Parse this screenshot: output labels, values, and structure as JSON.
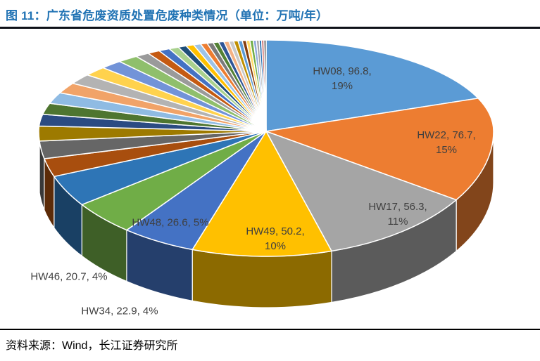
{
  "title": "图 11：广东省危废资质处置危废种类情况（单位：万吨/年）",
  "source": "资料来源：Wind，长江证券研究所",
  "colors": {
    "title_text": "#2173B4",
    "title_rule": "#0E1118",
    "source_rule": "#000000",
    "label_text": "#3F3F3F",
    "background": "#FFFFFF"
  },
  "chart_data": {
    "type": "pie",
    "style": "3d",
    "title": "广东省危废资质处置危废种类情况",
    "unit": "万吨/年",
    "legend_position": "none",
    "label_format": "name, value, percent",
    "slices": [
      {
        "name": "HW08",
        "value": "96.8",
        "pct": "19%",
        "color": "#5B9BD5"
      },
      {
        "name": "HW22",
        "value": "76.7",
        "pct": "15%",
        "color": "#ED7D31"
      },
      {
        "name": "HW17",
        "value": "56.3",
        "pct": "11%",
        "color": "#A5A5A5"
      },
      {
        "name": "HW49",
        "value": "50.2",
        "pct": "10%",
        "color": "#FFC000"
      },
      {
        "name": "HW48",
        "value": "26.6",
        "pct": "5%",
        "color": "#4472C4"
      },
      {
        "name": "HW34",
        "value": "22.9",
        "pct": "4%",
        "color": "#70AD47"
      },
      {
        "name": "HW46",
        "value": "20.7",
        "pct": "4%",
        "color": "#2E75B6"
      }
    ],
    "unlabeled_segments_note": "remaining ~31% of the pie is made of many small unlabeled slices; values below are visual approximations",
    "unlabeled_segments": [
      {
        "value": 12,
        "color": "#A84E0E"
      },
      {
        "value": 11.5,
        "color": "#666666"
      },
      {
        "value": 11,
        "color": "#9D7A00"
      },
      {
        "value": 10.5,
        "color": "#2B4B82"
      },
      {
        "value": 10,
        "color": "#4E7530"
      },
      {
        "value": 10,
        "color": "#8FBBE3"
      },
      {
        "value": 9.5,
        "color": "#F1A368"
      },
      {
        "value": 9,
        "color": "#B3B3B3"
      },
      {
        "value": 8.5,
        "color": "#FFD24D"
      },
      {
        "value": 8,
        "color": "#7293D8"
      },
      {
        "value": 7.5,
        "color": "#8FBF6C"
      },
      {
        "value": 5,
        "color": "#9A9A9A"
      },
      {
        "value": 4.5,
        "color": "#C55A11"
      },
      {
        "value": 4,
        "color": "#4472C4"
      },
      {
        "value": 3.5,
        "color": "#A9D18E"
      },
      {
        "value": 3,
        "color": "#1F4E79"
      },
      {
        "value": 2.8,
        "color": "#FFC000"
      },
      {
        "value": 2.6,
        "color": "#9DC3E6"
      },
      {
        "value": 2.4,
        "color": "#ED7D31"
      },
      {
        "value": 2.2,
        "color": "#7B7B7B"
      },
      {
        "value": 2,
        "color": "#538135"
      },
      {
        "value": 1.9,
        "color": "#2F5597"
      },
      {
        "value": 1.8,
        "color": "#F4B183"
      },
      {
        "value": 1.7,
        "color": "#C9C9C9"
      },
      {
        "value": 1.6,
        "color": "#BF8F00"
      },
      {
        "value": 1.5,
        "color": "#5B9BD5"
      },
      {
        "value": 1.4,
        "color": "#843C0C"
      },
      {
        "value": 1.3,
        "color": "#FFD966"
      },
      {
        "value": 1.2,
        "color": "#70AD47"
      },
      {
        "value": 1.1,
        "color": "#8FAADC"
      },
      {
        "value": 1.0,
        "color": "#A5A5A5"
      },
      {
        "value": 0.9,
        "color": "#2E75B6"
      },
      {
        "value": 0.8,
        "color": "#C0504D"
      },
      {
        "value": 0.8,
        "color": "#525252"
      }
    ]
  }
}
